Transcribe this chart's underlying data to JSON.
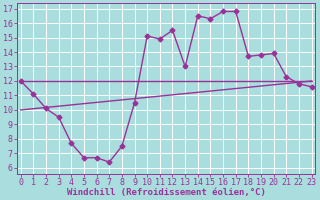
{
  "x": [
    0,
    1,
    2,
    3,
    4,
    5,
    6,
    7,
    8,
    9,
    10,
    11,
    12,
    13,
    14,
    15,
    16,
    17,
    18,
    19,
    20,
    21,
    22,
    23
  ],
  "y_main": [
    12.0,
    11.1,
    10.1,
    9.5,
    7.7,
    6.7,
    6.7,
    6.4,
    7.5,
    10.5,
    15.1,
    14.9,
    15.5,
    13.0,
    16.5,
    16.3,
    16.8,
    16.8,
    13.7,
    13.8,
    13.9,
    12.3,
    11.8,
    11.6
  ],
  "y_upper_line_x": [
    0,
    23
  ],
  "y_upper_line_y": [
    12.0,
    12.0
  ],
  "y_lower_line_x": [
    0,
    23
  ],
  "y_lower_line_y": [
    10.0,
    12.0
  ],
  "color_main": "#993399",
  "color_line": "#993399",
  "bg_color": "#aadddd",
  "grid_color": "#ffffff",
  "xlabel": "Windchill (Refroidissement éolien,°C)",
  "ylabel_ticks": [
    6,
    7,
    8,
    9,
    10,
    11,
    12,
    13,
    14,
    15,
    16,
    17
  ],
  "xlim": [
    -0.3,
    23.3
  ],
  "ylim": [
    5.6,
    17.4
  ],
  "xlabel_color": "#993399",
  "tick_color": "#993399",
  "marker": "D",
  "markersize": 2.5,
  "linewidth": 1.0,
  "xlabel_fontsize": 6.5,
  "tick_fontsize": 6.0
}
